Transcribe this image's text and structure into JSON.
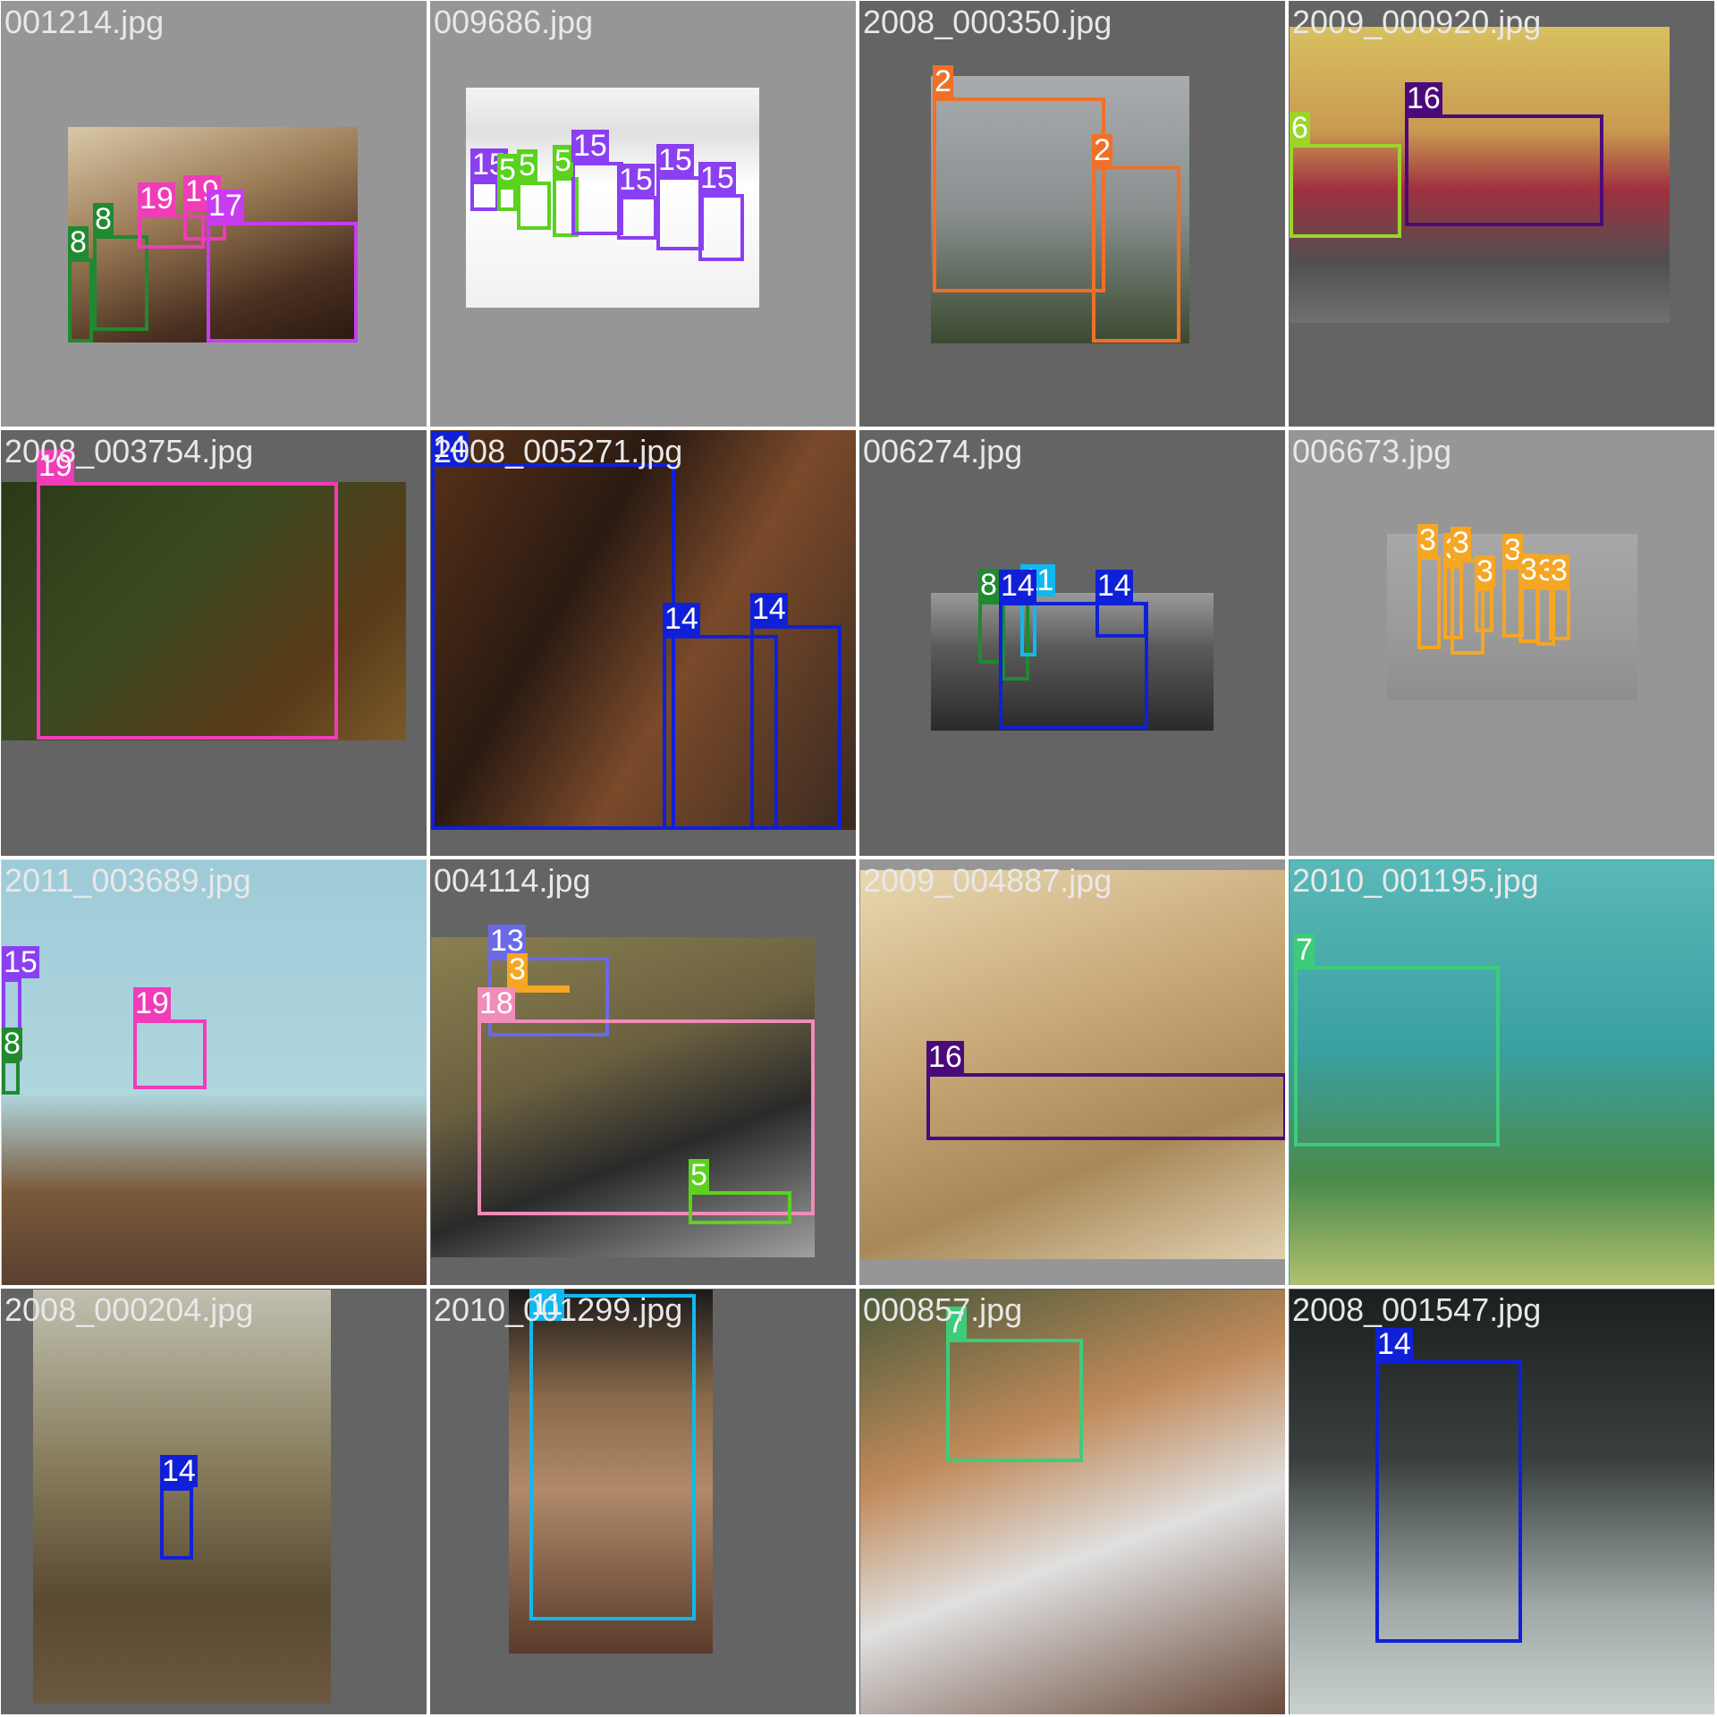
{
  "grid": {
    "tiles": [
      {
        "filename": "001214.jpg",
        "labels": [
          "8",
          "8",
          "19",
          "19",
          "17"
        ]
      },
      {
        "filename": "009686.jpg",
        "labels": [
          "15",
          "5",
          "5",
          "5",
          "15",
          "15",
          "15",
          "15"
        ]
      },
      {
        "filename": "2008_000350.jpg",
        "labels": [
          "2",
          "2"
        ]
      },
      {
        "filename": "2009_000920.jpg",
        "labels": [
          "6",
          "16"
        ]
      },
      {
        "filename": "2008_003754.jpg",
        "labels": [
          "19"
        ]
      },
      {
        "filename": "2008_005271.jpg",
        "labels": [
          "14",
          "14",
          "14"
        ]
      },
      {
        "filename": "006274.jpg",
        "labels": [
          "8",
          "8",
          "11",
          "14",
          "14"
        ]
      },
      {
        "filename": "006673.jpg",
        "labels": [
          "3",
          "3",
          "3",
          "3",
          "3",
          "3",
          "3",
          "3"
        ]
      },
      {
        "filename": "2011_003689.jpg",
        "labels": [
          "15",
          "8",
          "19"
        ]
      },
      {
        "filename": "004114.jpg",
        "labels": [
          "13",
          "3",
          "18",
          "5"
        ]
      },
      {
        "filename": "2009_004887.jpg",
        "labels": [
          "16"
        ]
      },
      {
        "filename": "2010_001195.jpg",
        "labels": [
          "7"
        ]
      },
      {
        "filename": "2008_000204.jpg",
        "labels": [
          "14"
        ]
      },
      {
        "filename": "2010_001299.jpg",
        "labels": [
          "11"
        ]
      },
      {
        "filename": "000857.jpg",
        "labels": [
          "7"
        ]
      },
      {
        "filename": "2008_001547.jpg",
        "labels": [
          "14"
        ]
      }
    ]
  },
  "class_colors": {
    "2": "#f07028",
    "3": "#f5a623",
    "5": "#5ad21e",
    "6": "#9cd42a",
    "7": "#3ccc7a",
    "8": "#208a30",
    "11": "#10b8f0",
    "13": "#6a6ae8",
    "14": "#1020d8",
    "15": "#8a40f0",
    "16": "#4a0a7a",
    "17": "#c83cf0",
    "18": "#f08cb8",
    "19": "#f03cb8"
  }
}
